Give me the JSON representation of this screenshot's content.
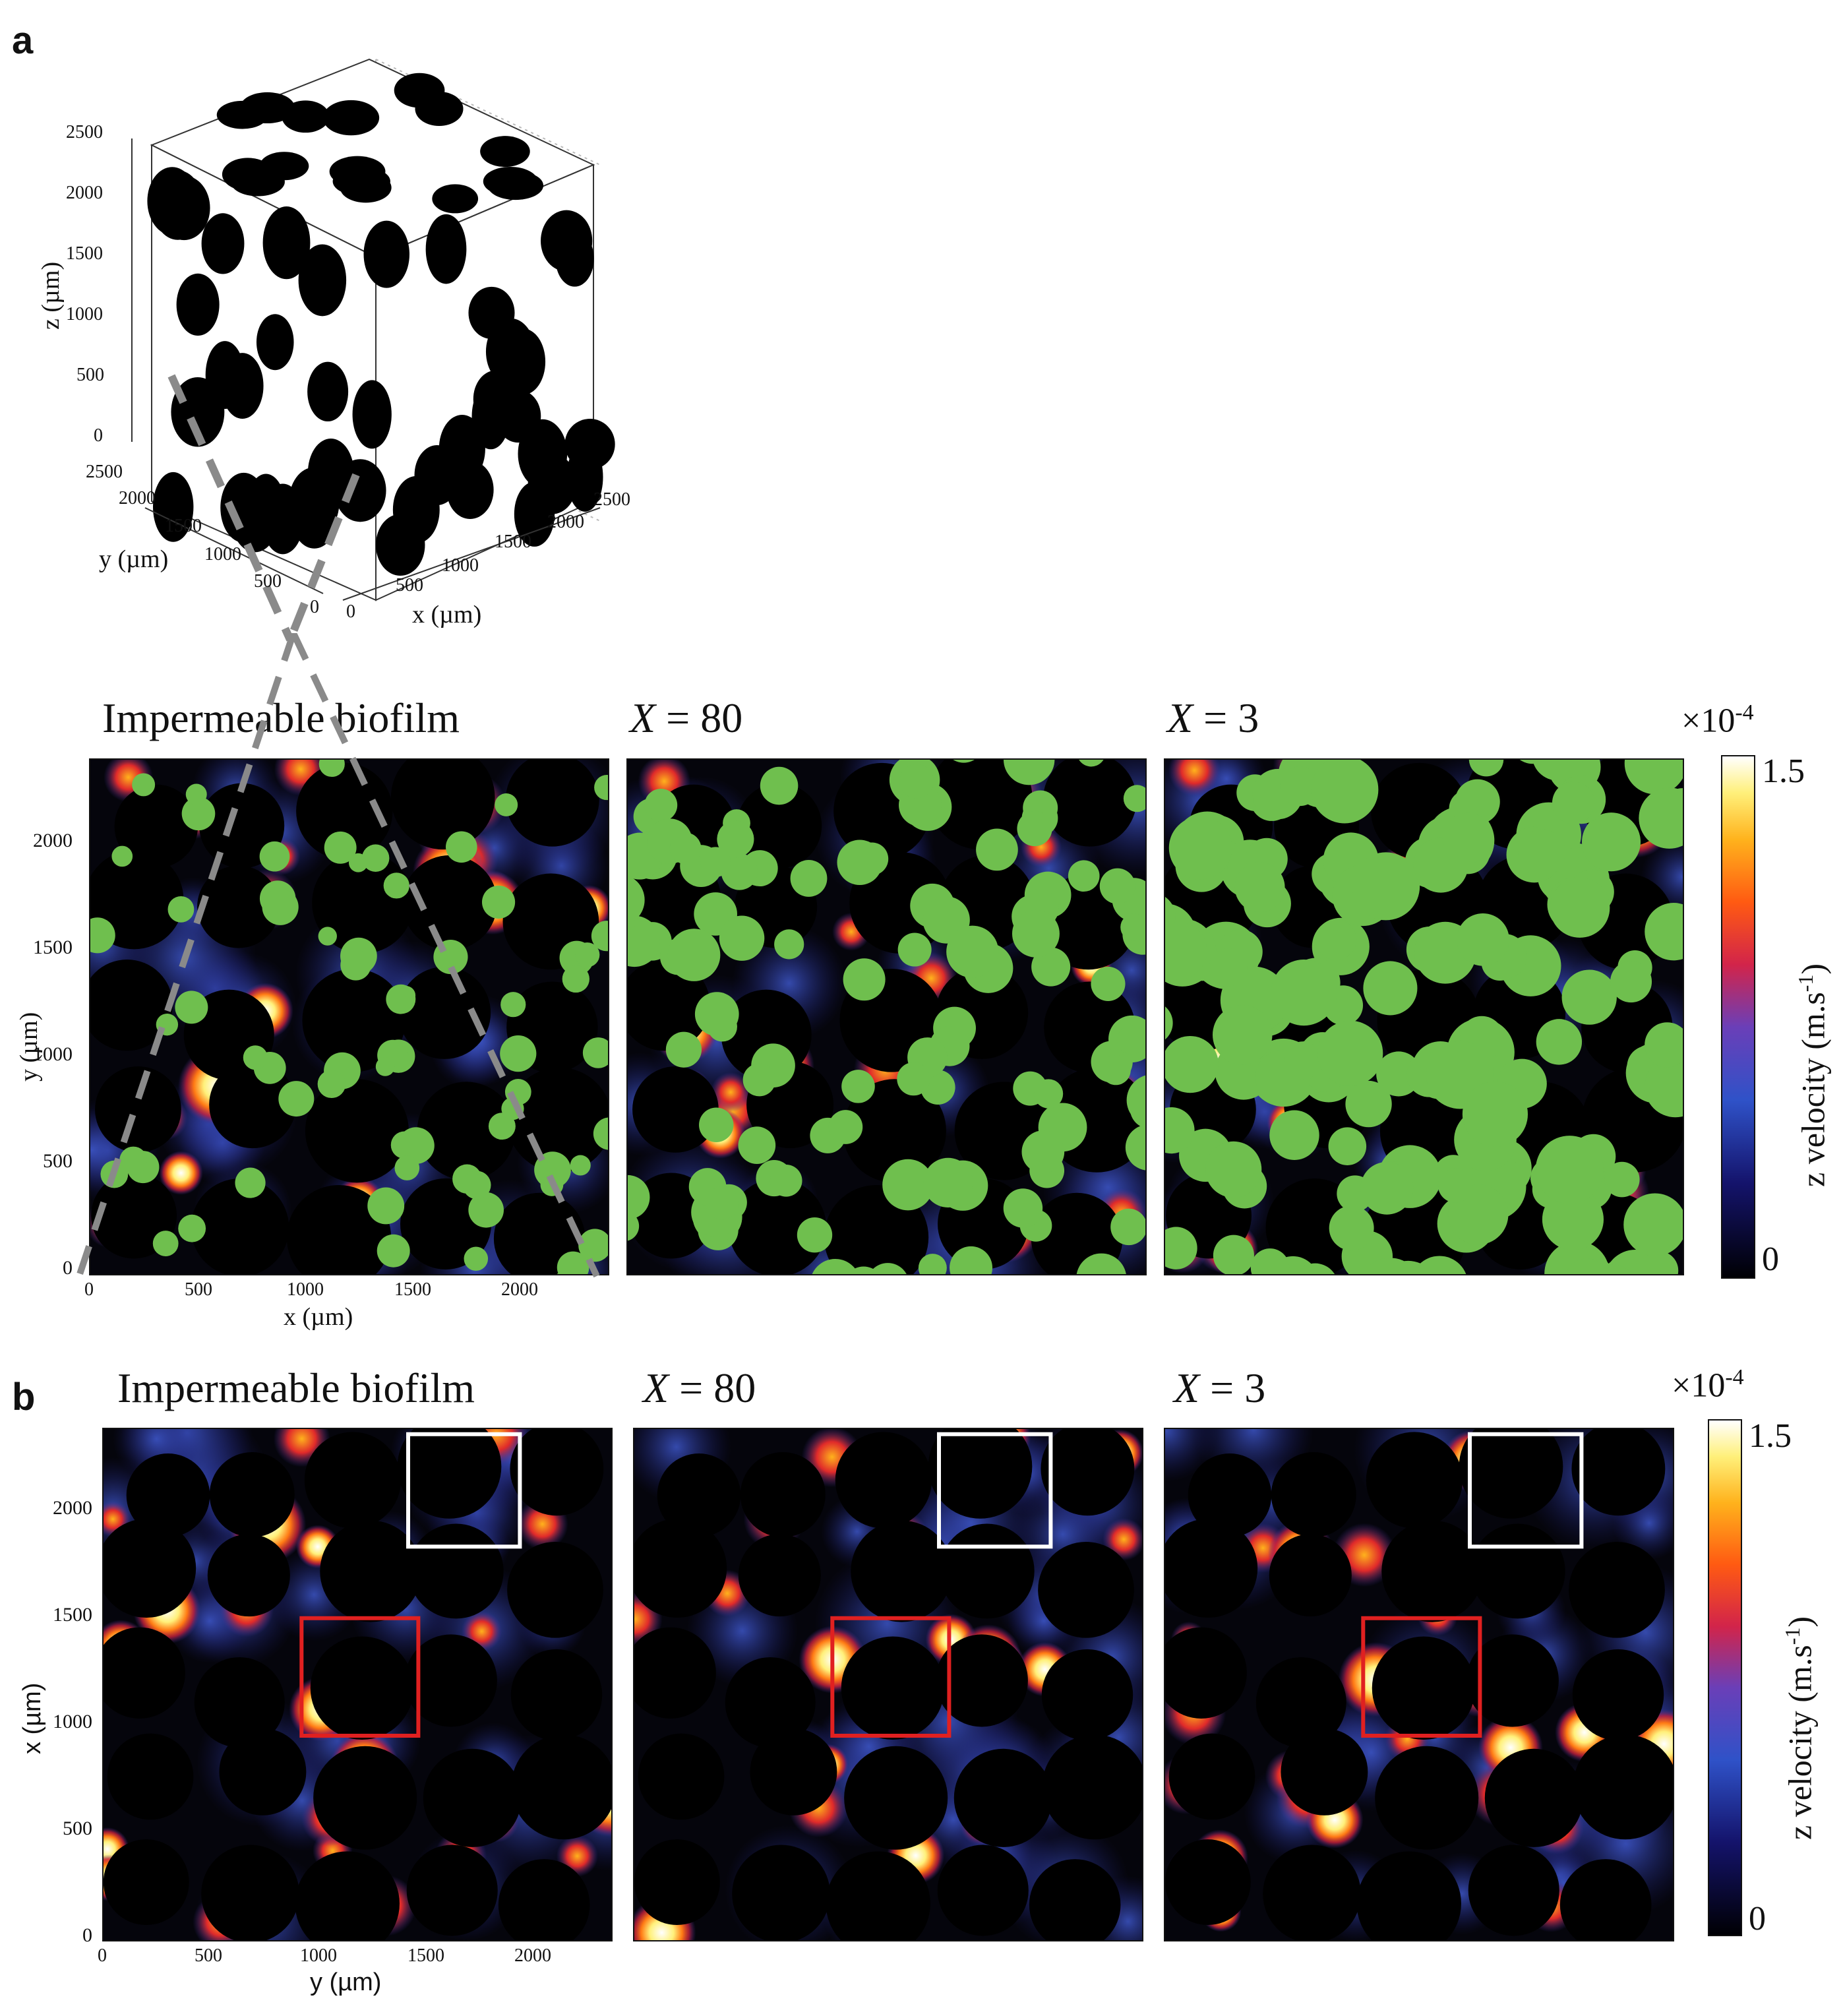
{
  "panel_a": {
    "letter": "a",
    "cube": {
      "z_label": "z (µm)",
      "y_label": "y (µm)",
      "x_label": "x (µm)",
      "z_ticks": [
        "2500",
        "2000",
        "1500",
        "1000",
        "500",
        "0"
      ],
      "y_ticks": [
        "2500",
        "2000",
        "1500",
        "1000",
        "500",
        "0"
      ],
      "x_ticks": [
        "0",
        "500",
        "1000",
        "1500",
        "2000",
        "2500"
      ]
    },
    "maps": [
      {
        "title_pre": "Impermeable biofilm",
        "title_var": "",
        "title_post": ""
      },
      {
        "title_pre": "",
        "title_var": "X",
        "title_post": " = 80"
      },
      {
        "title_pre": "",
        "title_var": "X",
        "title_post": " = 3"
      }
    ],
    "y_label": "y (µm)",
    "x_label": "x (µm)",
    "y_ticks": [
      "2000",
      "1500",
      "1000",
      "500",
      "0"
    ],
    "x_ticks": [
      "0",
      "500",
      "1000",
      "1500",
      "2000"
    ],
    "colorbar": {
      "multiplier": "×10",
      "exponent": "-4",
      "max": "1.5",
      "min": "0",
      "label": "z velocity (m.s",
      "label_exp": "-1",
      "label_end": ")"
    }
  },
  "panel_b": {
    "letter": "b",
    "maps": [
      {
        "title_pre": "Impermeable biofilm",
        "title_var": "",
        "title_post": ""
      },
      {
        "title_pre": "",
        "title_var": "X",
        "title_post": " = 80"
      },
      {
        "title_pre": "",
        "title_var": "X",
        "title_post": " = 3"
      }
    ],
    "y_label": "x (µm)",
    "x_label": "y (µm)",
    "y_ticks": [
      "2000",
      "1500",
      "1000",
      "500",
      "0"
    ],
    "x_ticks": [
      "0",
      "500",
      "1000",
      "1500",
      "2000"
    ],
    "colorbar": {
      "multiplier": "×10",
      "exponent": "-4",
      "max": "1.5",
      "min": "0",
      "label": "z velocity (m.s",
      "label_exp": "-1",
      "label_end": ")"
    }
  },
  "colors": {
    "background_map": "#05050c",
    "biofilm": "#6fbf4e",
    "white_box": "#ffffff",
    "red_box": "#e02020",
    "dashed_guide": "#8a8a8a"
  }
}
